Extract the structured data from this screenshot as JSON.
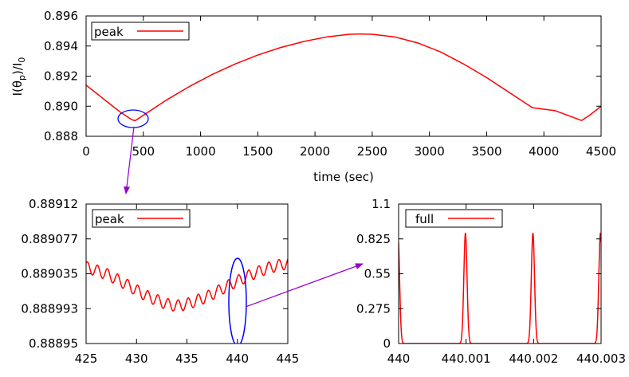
{
  "chart_data": [
    {
      "type": "line",
      "title": "",
      "xlabel": "time (sec)",
      "ylabel": "I(θp)/I0",
      "ylabel_parts": {
        "a": "I(θ",
        "b": "p",
        "c": ")/I",
        "d": "0"
      },
      "xlim": [
        0,
        4500
      ],
      "ylim": [
        0.888,
        0.896
      ],
      "xticks": [
        "0",
        "500",
        "1000",
        "1500",
        "2000",
        "2500",
        "3000",
        "3500",
        "4000",
        "4500"
      ],
      "yticks": [
        "0.888",
        "0.890",
        "0.892",
        "0.894",
        "0.896"
      ],
      "legend_position": "top-left",
      "series": [
        {
          "name": "peak",
          "color": "#ff0000",
          "x": [
            0,
            100,
            200,
            300,
            400,
            430,
            500,
            700,
            900,
            1100,
            1300,
            1500,
            1700,
            1900,
            2100,
            2300,
            2400,
            2500,
            2700,
            2900,
            3100,
            3300,
            3500,
            3700,
            3900,
            4100,
            4330,
            4400,
            4500
          ],
          "y": [
            0.8914,
            0.8908,
            0.8902,
            0.8896,
            0.8891,
            0.88904,
            0.8894,
            0.8904,
            0.8913,
            0.8921,
            0.8928,
            0.8934,
            0.8939,
            0.8943,
            0.8946,
            0.89478,
            0.8948,
            0.89478,
            0.8946,
            0.8942,
            0.8936,
            0.8928,
            0.8919,
            0.8909,
            0.8899,
            0.8897,
            0.88905,
            0.8894,
            0.89
          ]
        }
      ],
      "annotation": {
        "type": "ellipse",
        "color": "#0000ff",
        "center": [
          430,
          0.8891
        ],
        "note": "zoomed region"
      }
    },
    {
      "type": "line",
      "title": "",
      "xlabel": "",
      "ylabel": "",
      "xlim": [
        425,
        445
      ],
      "ylim": [
        0.88895,
        0.88912
      ],
      "xticks": [
        "425",
        "430",
        "435",
        "440",
        "445"
      ],
      "yticks": [
        "0.88895",
        "0.888993",
        "0.889035",
        "0.889077",
        "0.88912"
      ],
      "legend_position": "top-left",
      "series": [
        {
          "name": "peak",
          "color": "#ff0000",
          "trend_x": [
            425,
            427,
            429,
            431,
            433,
            434,
            435,
            437,
            439,
            441,
            443,
            445
          ],
          "trend_y": [
            0.889043,
            0.889035,
            0.889022,
            0.889008,
            0.888998,
            0.888996,
            0.888998,
            0.889007,
            0.88902,
            0.889032,
            0.889042,
            0.889048
          ],
          "oscillation_period": 1.0,
          "oscillation_amplitude": 7e-06
        }
      ],
      "annotation": {
        "type": "ellipse",
        "color": "#0000ff",
        "center": [
          440,
          0.88902
        ],
        "note": "zoomed region"
      }
    },
    {
      "type": "line",
      "title": "",
      "xlabel": "",
      "ylabel": "",
      "xlim": [
        440,
        440.003
      ],
      "ylim": [
        0,
        1.1
      ],
      "xticks": [
        "440",
        "440.001",
        "440.002",
        "440.003"
      ],
      "yticks": [
        "0",
        "0.275",
        "0.55",
        "0.825",
        "1.1"
      ],
      "legend_position": "top-left",
      "series": [
        {
          "name": "full",
          "color": "#ff0000",
          "peak_x": [
            439.99999,
            440.00099,
            440.00199,
            440.00299
          ],
          "peak_y": 0.87,
          "peak_half_width": 4e-05
        }
      ]
    }
  ]
}
